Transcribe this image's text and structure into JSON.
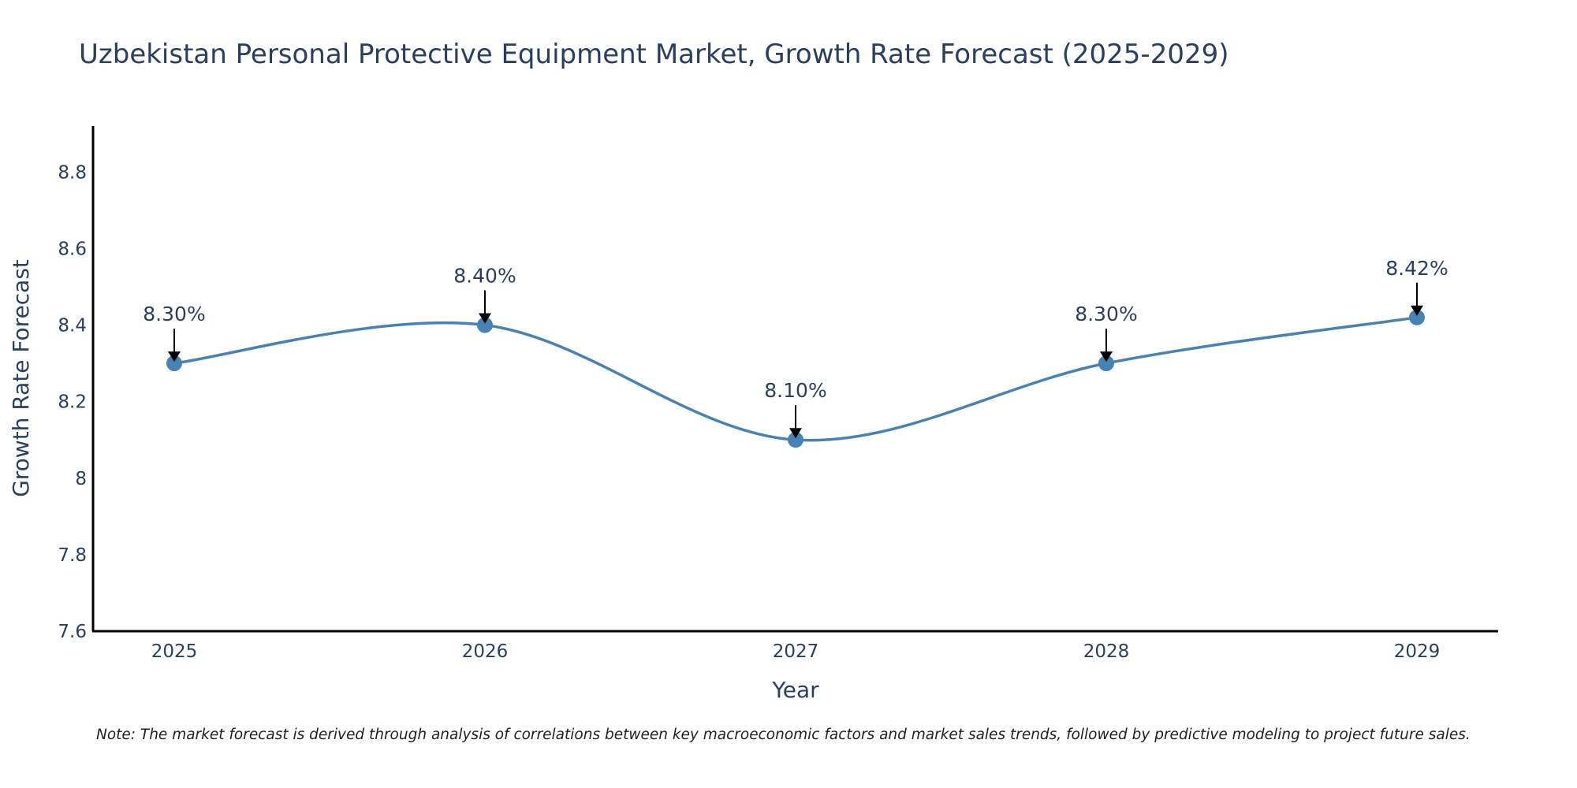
{
  "chart_data": {
    "type": "line",
    "title": "Uzbekistan Personal Protective Equipment Market, Growth Rate Forecast (2025-2029)",
    "xlabel": "Year",
    "ylabel": "Growth Rate Forecast",
    "categories": [
      "2025",
      "2026",
      "2027",
      "2028",
      "2029"
    ],
    "series": [
      {
        "name": "Growth Rate Forecast",
        "values": [
          8.3,
          8.4,
          8.1,
          8.3,
          8.42
        ],
        "color": "#4682b4"
      }
    ],
    "data_labels": [
      "8.30%",
      "8.40%",
      "8.10%",
      "8.30%",
      "8.42%"
    ],
    "ylim": [
      7.6,
      8.92
    ],
    "yticks": [
      7.6,
      7.8,
      8.0,
      8.2,
      8.4,
      8.6,
      8.8
    ],
    "ytick_labels": [
      "7.6",
      "7.8",
      "8",
      "8.2",
      "8.4",
      "8.6",
      "8.8"
    ],
    "grid": false,
    "line_shape": "spline",
    "note": "Note: The market forecast is derived through analysis of correlations between key macroeconomic factors and market sales trends, followed by predictive modeling to project future sales."
  }
}
